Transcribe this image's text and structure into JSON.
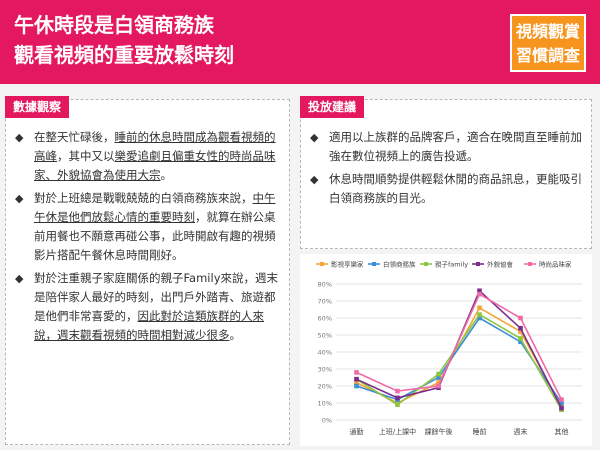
{
  "header": {
    "title_line1": "午休時段是白領商務族",
    "title_line2": "觀看視頻的重要放鬆時刻",
    "badge_line1": "視頻觀賞",
    "badge_line2": "習慣調查"
  },
  "left": {
    "tab": "數據觀察",
    "b1": {
      "p1": "在整天忙碌後，",
      "u1": "睡前的休息時間成為觀看視頻的高峰",
      "p2": "，其中又以",
      "u2": "樂愛追劇且偏重女性的時尚品味家、外貌協會為使用大宗",
      "p3": "。"
    },
    "b2": {
      "p1": "對於上班總是戰戰兢兢的白領商務族來說，",
      "u1": "中午午休是他們放鬆心情的重要時刻",
      "p2": "，就算在辦公桌前用餐也不願意再碰公事，此時開啟有趣的視頻影片搭配午餐休息時間剛好。"
    },
    "b3": {
      "p1": "對於注重親子家庭關係的親子Family來說，週末是陪伴家人最好的時刻，出門戶外踏青、旅遊都是他們非常喜愛的，",
      "u1": "因此對於這類族群的人來說，週末觀看視頻的時間相對減少很多",
      "p2": "。"
    }
  },
  "right": {
    "tab": "投放建議",
    "b1": "適用以上族群的品牌客戶，適合在晚間直至睡前加強在數位視頻上的廣告投遞。",
    "b2": "休息時間順勢提供輕鬆休閒的商品訊息，更能吸引白領商務族的目光。"
  },
  "icons": {
    "bullet": "diamond-bullet-icon"
  },
  "colors": {
    "magenta": "#e4185f",
    "orange": "#f7941d"
  },
  "chart_data": {
    "type": "line",
    "categories": [
      "通勤",
      "上班/上課中",
      "課餘午後",
      "睡前",
      "週末",
      "其他"
    ],
    "ylim": [
      0,
      80
    ],
    "yticks": [
      "0%",
      "10%",
      "20%",
      "30%",
      "40%",
      "50%",
      "60%",
      "70%",
      "80%"
    ],
    "grid": true,
    "legend_position": "top",
    "series": [
      {
        "name": "影視享樂家",
        "color": "#f4a535",
        "values": [
          22,
          10,
          22,
          66,
          52,
          8
        ]
      },
      {
        "name": "白領商務族",
        "color": "#3d8fd6",
        "values": [
          20,
          12,
          25,
          60,
          46,
          10
        ]
      },
      {
        "name": "親子family",
        "color": "#8dc63f",
        "values": [
          24,
          9,
          27,
          62,
          48,
          6
        ]
      },
      {
        "name": "外貌協會",
        "color": "#7b2d8e",
        "values": [
          24,
          13,
          19,
          76,
          54,
          7
        ]
      },
      {
        "name": "時尚品味家",
        "color": "#f06aa6",
        "values": [
          28,
          17,
          20,
          74,
          60,
          12
        ]
      }
    ]
  }
}
